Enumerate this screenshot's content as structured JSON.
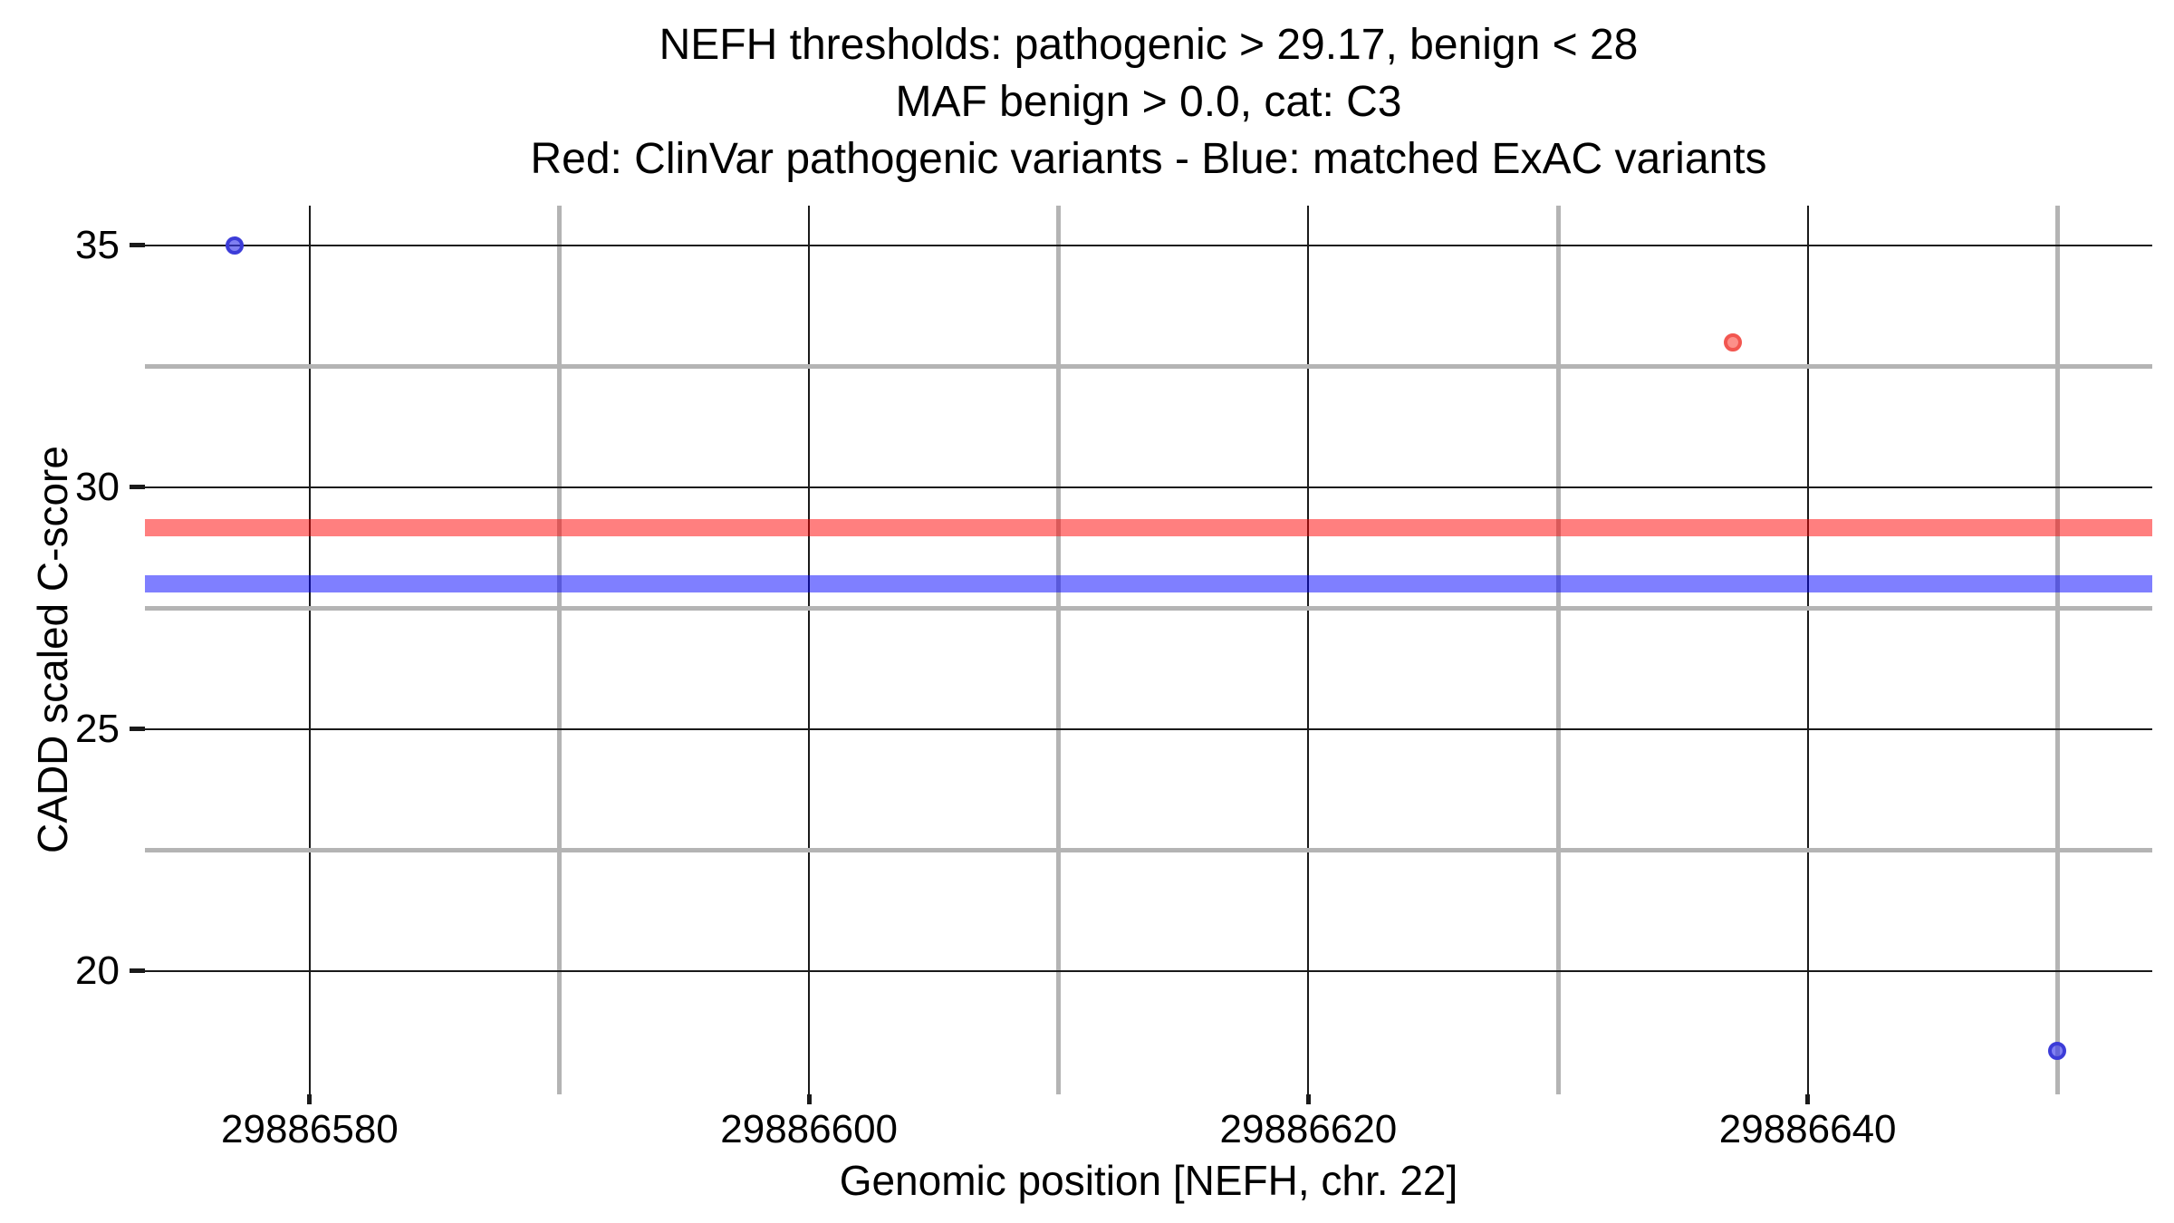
{
  "chart_data": {
    "type": "scatter",
    "title_lines": [
      "NEFH thresholds: pathogenic > 29.17, benign < 28",
      "MAF benign > 0.0, cat: C3",
      "Red: ClinVar pathogenic variants - Blue: matched ExAC variants"
    ],
    "xlabel": "Genomic position [NEFH, chr. 22]",
    "ylabel": "CADD scaled C-score",
    "xlim": [
      29886573.4,
      29886653.8
    ],
    "ylim": [
      17.45,
      35.82
    ],
    "x_major_ticks": [
      {
        "value": 29886580,
        "label": "29886580"
      },
      {
        "value": 29886600,
        "label": "29886600"
      },
      {
        "value": 29886620,
        "label": "29886620"
      },
      {
        "value": 29886640,
        "label": "29886640"
      }
    ],
    "x_minor_ticks": [
      29886590,
      29886610,
      29886630,
      29886650
    ],
    "y_major_ticks": [
      {
        "value": 35,
        "label": "35"
      },
      {
        "value": 30,
        "label": "30"
      },
      {
        "value": 25,
        "label": "25"
      },
      {
        "value": 20,
        "label": "20"
      }
    ],
    "y_minor_ticks": [
      32.5,
      27.5,
      22.5
    ],
    "grid": {
      "major_color": "#1a1a1a",
      "major_width": 2,
      "minor_color": "#b4b4b4",
      "minor_width": 5,
      "grid_on": true,
      "legend_position": "none"
    },
    "thresholds": [
      {
        "name": "pathogenic",
        "value": 29.17,
        "color": "rgba(255,0,0,0.5)"
      },
      {
        "name": "benign",
        "value": 28.0,
        "color": "rgba(0,0,255,0.5)"
      }
    ],
    "series": [
      {
        "name": "ClinVar pathogenic variants",
        "fill": "rgba(250,70,60,0.6)",
        "stroke": "#f25650",
        "points": [
          {
            "x": 29886637,
            "y": 33.0
          }
        ]
      },
      {
        "name": "matched ExAC variants",
        "fill": "rgba(60,60,235,0.65)",
        "stroke": "#3c3cd8",
        "points": [
          {
            "x": 29886577,
            "y": 35.0
          },
          {
            "x": 29886650,
            "y": 18.35
          }
        ]
      }
    ]
  }
}
